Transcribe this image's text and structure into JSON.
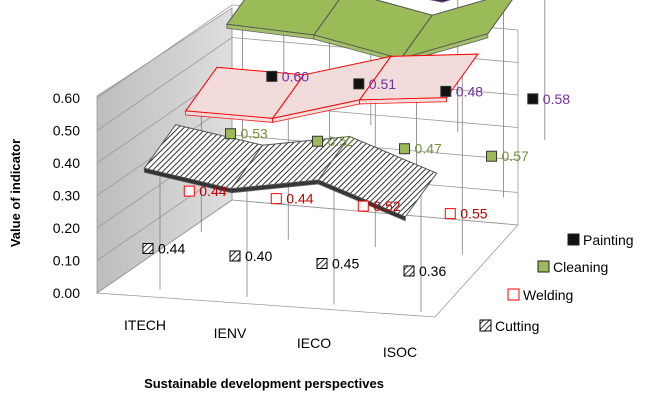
{
  "chart_data": {
    "type": "line",
    "chart_style": "3d-ribbon",
    "categories": [
      "ITECH",
      "IENV",
      "IECO",
      "ISOC"
    ],
    "ylabel": "Value of indicator",
    "xlabel": "Sustainable development perspectives",
    "ylim": [
      0,
      0.6
    ],
    "yticks": [
      "0.00",
      "0.10",
      "0.20",
      "0.30",
      "0.40",
      "0.50",
      "0.60"
    ],
    "gridlines": true,
    "legend_position": "right",
    "series": [
      {
        "name": "Painting",
        "values": [
          0.6,
          0.51,
          0.48,
          0.58
        ],
        "labels": [
          "0.60",
          "0.51",
          "0.48",
          "0.58"
        ],
        "color": "#111111",
        "label_color": "#7030a0"
      },
      {
        "name": "Cleaning",
        "values": [
          0.53,
          0.52,
          0.47,
          0.57
        ],
        "labels": [
          "0.53",
          "0.52",
          "0.47",
          "0.57"
        ],
        "color": "#9bbb59",
        "label_color": "#76923c"
      },
      {
        "name": "Welding",
        "values": [
          0.44,
          0.44,
          0.52,
          0.55
        ],
        "labels": [
          "0.44",
          "0.44",
          "0.52",
          "0.55"
        ],
        "color": "#f2dcdb",
        "label_color": "#c00000"
      },
      {
        "name": "Cutting",
        "values": [
          0.44,
          0.4,
          0.45,
          0.36
        ],
        "labels": [
          "0.44",
          "0.40",
          "0.45",
          "0.36"
        ],
        "color": "#333333",
        "label_color": "#000000"
      }
    ]
  }
}
